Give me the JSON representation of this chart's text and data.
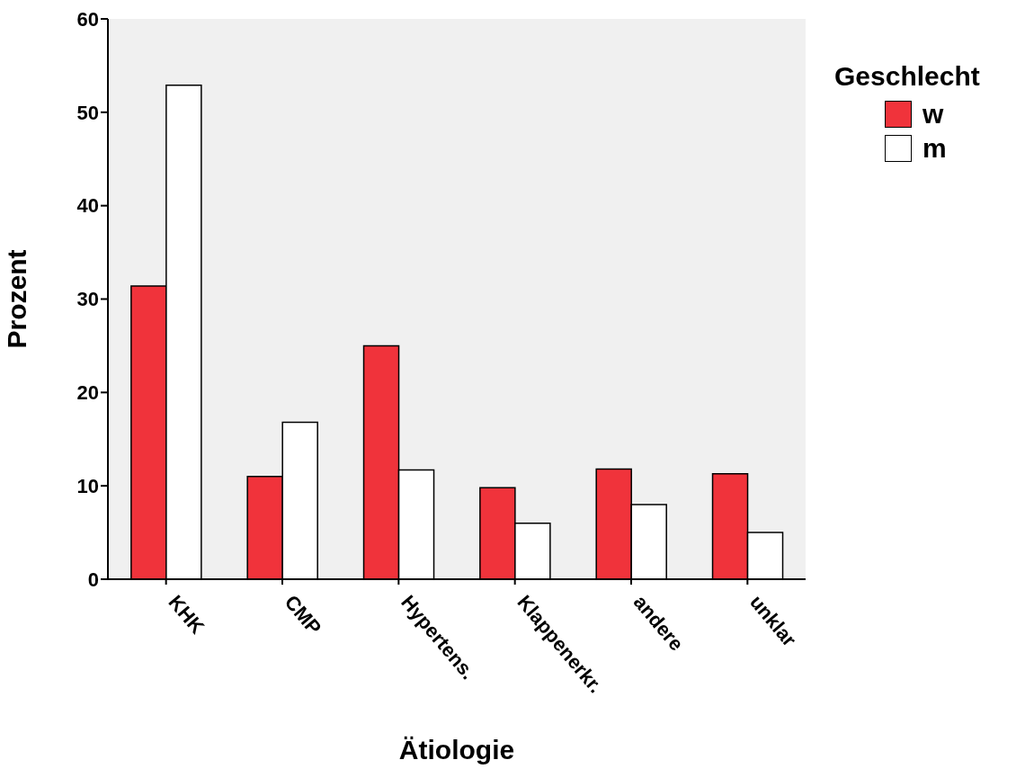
{
  "chart_data": {
    "type": "bar",
    "xlabel": "Ätiologie",
    "ylabel": "Prozent",
    "legend_title": "Geschlecht",
    "categories": [
      "KHK",
      "CMP",
      "Hypertens.",
      "Klappenerkr.",
      "andere",
      "unklar"
    ],
    "series": [
      {
        "name": "w",
        "color": "#f0333b",
        "values": [
          31.4,
          11.0,
          25.0,
          9.8,
          11.8,
          11.3
        ]
      },
      {
        "name": "m",
        "color": "#ffffff",
        "values": [
          52.9,
          16.8,
          11.7,
          6.0,
          8.0,
          5.0
        ]
      }
    ],
    "ylim": [
      0,
      60
    ],
    "yticks": [
      0,
      10,
      20,
      30,
      40,
      50,
      60
    ],
    "grid": false,
    "legend": "top right"
  }
}
